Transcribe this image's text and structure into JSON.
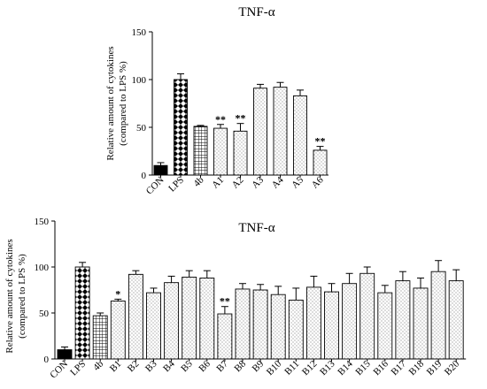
{
  "chart_data": [
    {
      "type": "bar",
      "title": "TNF-α",
      "ylabel": [
        "Relative amount of cytokines",
        "(compared to LPS %)"
      ],
      "ylim": [
        0,
        150
      ],
      "yticks": [
        0,
        50,
        100,
        150
      ],
      "categories": [
        "CON",
        "LPS",
        "4b",
        "A1",
        "A2",
        "A3",
        "A4",
        "A5",
        "A6"
      ],
      "values": [
        10,
        100,
        51,
        49,
        46,
        91,
        92,
        83,
        26
      ],
      "errors": [
        3,
        6,
        1,
        4,
        8,
        4,
        5,
        6,
        4
      ],
      "significance": [
        "",
        "",
        "",
        "**",
        "**",
        "",
        "",
        "",
        "**"
      ],
      "patterns": [
        "solid",
        "checker",
        "grid",
        "dots",
        "dots",
        "dots",
        "dots",
        "dots",
        "dots"
      ]
    },
    {
      "type": "bar",
      "title": "TNF-α",
      "ylabel": [
        "Relative amount of cytokines",
        "(compared to LPS %)"
      ],
      "ylim": [
        0,
        150
      ],
      "yticks": [
        0,
        50,
        100,
        150
      ],
      "categories": [
        "CON",
        "LPS",
        "4b",
        "B1",
        "B2",
        "B3",
        "B4",
        "B5",
        "B6",
        "B7",
        "B8",
        "B9",
        "B10",
        "B11",
        "B12",
        "B13",
        "B14",
        "B15",
        "B16",
        "B17",
        "B18",
        "B19",
        "B20"
      ],
      "values": [
        10,
        100,
        47,
        63,
        92,
        72,
        83,
        89,
        88,
        49,
        76,
        75,
        70,
        64,
        78,
        73,
        82,
        93,
        72,
        85,
        77,
        95,
        85
      ],
      "errors": [
        3,
        5,
        3,
        2,
        4,
        5,
        7,
        7,
        8,
        8,
        6,
        6,
        9,
        13,
        12,
        9,
        11,
        7,
        8,
        10,
        11,
        12,
        12
      ],
      "significance": [
        "",
        "",
        "",
        "*",
        "",
        "",
        "",
        "",
        "",
        "**",
        "",
        "",
        "",
        "",
        "",
        "",
        "",
        "",
        "",
        "",
        "",
        "",
        ""
      ],
      "patterns": [
        "solid",
        "checker",
        "grid",
        "dots",
        "dots",
        "dots",
        "dots",
        "dots",
        "dots",
        "dots",
        "dots",
        "dots",
        "dots",
        "dots",
        "dots",
        "dots",
        "dots",
        "dots",
        "dots",
        "dots",
        "dots",
        "dots",
        "dots"
      ]
    }
  ]
}
